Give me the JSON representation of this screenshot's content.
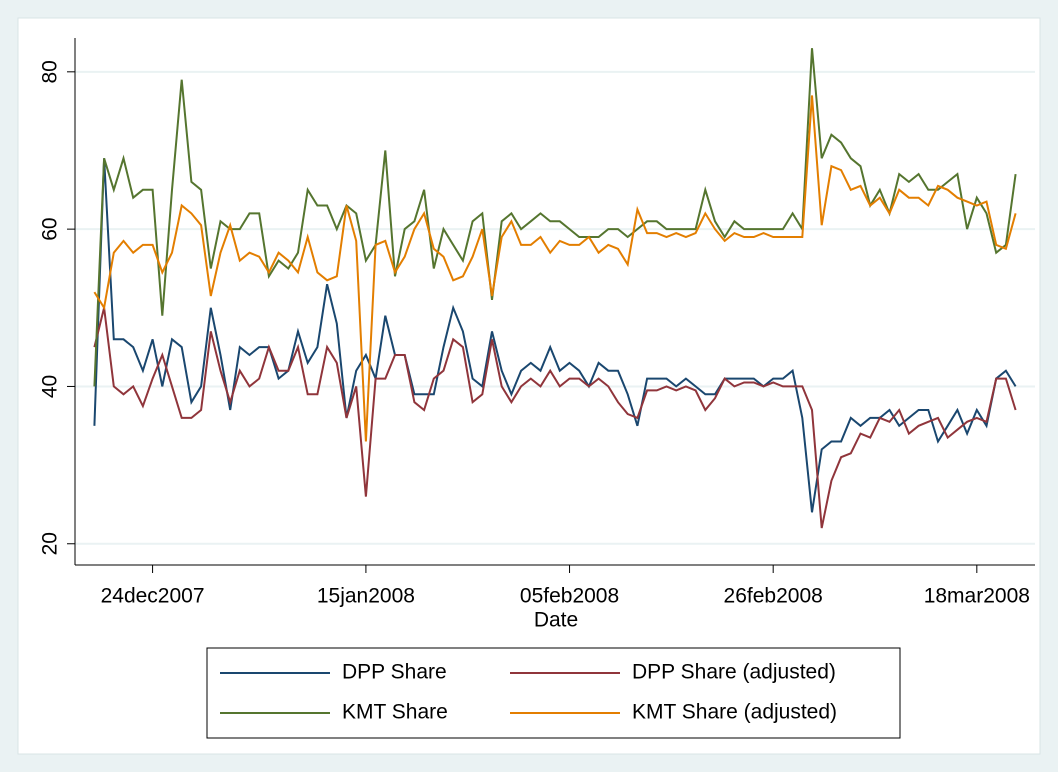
{
  "chart_data": {
    "type": "line",
    "x_label": "Date",
    "x": [
      "2007-12-18",
      "2007-12-19",
      "2007-12-20",
      "2007-12-21",
      "2007-12-22",
      "2007-12-23",
      "2007-12-24",
      "2007-12-25",
      "2007-12-26",
      "2007-12-27",
      "2007-12-28",
      "2007-12-29",
      "2007-12-30",
      "2007-12-31",
      "2008-01-01",
      "2008-01-02",
      "2008-01-03",
      "2008-01-04",
      "2008-01-05",
      "2008-01-06",
      "2008-01-07",
      "2008-01-08",
      "2008-01-09",
      "2008-01-10",
      "2008-01-11",
      "2008-01-12",
      "2008-01-13",
      "2008-01-14",
      "2008-01-15",
      "2008-01-16",
      "2008-01-17",
      "2008-01-18",
      "2008-01-19",
      "2008-01-20",
      "2008-01-21",
      "2008-01-22",
      "2008-01-23",
      "2008-01-24",
      "2008-01-25",
      "2008-01-26",
      "2008-01-27",
      "2008-01-28",
      "2008-01-29",
      "2008-01-30",
      "2008-01-31",
      "2008-02-01",
      "2008-02-02",
      "2008-02-03",
      "2008-02-04",
      "2008-02-05",
      "2008-02-06",
      "2008-02-07",
      "2008-02-08",
      "2008-02-09",
      "2008-02-10",
      "2008-02-11",
      "2008-02-12",
      "2008-02-13",
      "2008-02-14",
      "2008-02-15",
      "2008-02-16",
      "2008-02-17",
      "2008-02-18",
      "2008-02-19",
      "2008-02-20",
      "2008-02-21",
      "2008-02-22",
      "2008-02-23",
      "2008-02-24",
      "2008-02-25",
      "2008-02-26",
      "2008-02-27",
      "2008-02-28",
      "2008-02-29",
      "2008-03-01",
      "2008-03-02",
      "2008-03-03",
      "2008-03-04",
      "2008-03-05",
      "2008-03-06",
      "2008-03-07",
      "2008-03-08",
      "2008-03-09",
      "2008-03-10",
      "2008-03-11",
      "2008-03-12",
      "2008-03-13",
      "2008-03-14",
      "2008-03-15",
      "2008-03-16",
      "2008-03-17",
      "2008-03-18",
      "2008-03-19",
      "2008-03-20",
      "2008-03-21",
      "2008-03-22"
    ],
    "series": [
      {
        "name": "DPP Share",
        "color": "#1a476f",
        "values": [
          35,
          69,
          46,
          46,
          45,
          42,
          46,
          40,
          46,
          45,
          38,
          40,
          50,
          44,
          37,
          45,
          44,
          45,
          45,
          41,
          42,
          47,
          43,
          45,
          53,
          48,
          36,
          42,
          44,
          41,
          49,
          44,
          44,
          39,
          39,
          39,
          45,
          50,
          47,
          41,
          40,
          47,
          42,
          39,
          42,
          43,
          42,
          45,
          42,
          43,
          42,
          40,
          43,
          42,
          42,
          39,
          35,
          41,
          41,
          41,
          40,
          41,
          40,
          39,
          39,
          41,
          41,
          41,
          41,
          40,
          41,
          41,
          42,
          36,
          24,
          32,
          33,
          33,
          36,
          35,
          36,
          36,
          37,
          35,
          36,
          37,
          37,
          33,
          35,
          37,
          34,
          37,
          35,
          41,
          42,
          40
        ]
      },
      {
        "name": "DPP Share (adjusted)",
        "color": "#90353b",
        "values": [
          45,
          50,
          40,
          39,
          40,
          37.5,
          41,
          44,
          40,
          36,
          36,
          37,
          47,
          42,
          38,
          42,
          40,
          41,
          45,
          42,
          42,
          45,
          39,
          39,
          45,
          43,
          36,
          40,
          26,
          41,
          41,
          44,
          44,
          38,
          37,
          41,
          42,
          46,
          45,
          38,
          39,
          46,
          40,
          38,
          40,
          41,
          40,
          42,
          40,
          41,
          41,
          40,
          41,
          40,
          38,
          36.5,
          36,
          39.5,
          39.5,
          40,
          39.5,
          40,
          39.5,
          37,
          38.5,
          41,
          40,
          40.5,
          40.5,
          40,
          40.5,
          40,
          40,
          40,
          37,
          22,
          28,
          31,
          31.5,
          34,
          33.5,
          36,
          35.5,
          37,
          34,
          35,
          35.5,
          36,
          33.5,
          34.5,
          35.5,
          36,
          35.5,
          41,
          41,
          37
        ]
      },
      {
        "name": "KMT Share",
        "color": "#55752f",
        "values": [
          40,
          69,
          65,
          69,
          64,
          65,
          65,
          49,
          65,
          79,
          66,
          65,
          55,
          61,
          60,
          60,
          62,
          62,
          54,
          56,
          55,
          57,
          65,
          63,
          63,
          60,
          63,
          62,
          56,
          58,
          70,
          54,
          60,
          61,
          65,
          55,
          60,
          58,
          56,
          61,
          62,
          51,
          61,
          62,
          60,
          61,
          62,
          61,
          61,
          60,
          59,
          59,
          59,
          60,
          60,
          59,
          60,
          61,
          61,
          60,
          60,
          60,
          60,
          65,
          61,
          59,
          61,
          60,
          60,
          60,
          60,
          60,
          62,
          60,
          83,
          69,
          72,
          71,
          69,
          68,
          63,
          65,
          62,
          67,
          66,
          67,
          65,
          65,
          66,
          67,
          60,
          64,
          62,
          57,
          58,
          67
        ]
      },
      {
        "name": "KMT Share (adjusted)",
        "color": "#e37e00",
        "values": [
          52,
          50,
          57,
          58.5,
          57,
          58,
          58,
          54.5,
          57,
          63,
          62,
          60.5,
          51.5,
          57,
          60.5,
          56,
          57,
          56.5,
          54.5,
          57,
          56,
          54.5,
          59,
          54.5,
          53.5,
          54,
          63,
          58.5,
          33,
          58,
          58.5,
          54.5,
          56.5,
          60,
          62,
          57.5,
          56.5,
          53.5,
          54,
          56.5,
          60,
          51.5,
          59,
          61,
          58,
          58,
          59,
          57,
          58.5,
          58,
          58,
          59,
          57,
          58,
          57.5,
          55.5,
          62.5,
          59.5,
          59.5,
          59,
          59.5,
          59,
          59.5,
          62,
          60,
          58.5,
          59.5,
          59,
          59,
          59.5,
          59,
          59,
          59,
          59,
          77,
          60.5,
          68,
          67.5,
          65,
          65.5,
          63,
          64,
          62,
          65,
          64,
          64,
          63,
          65.5,
          65,
          64,
          63.5,
          63,
          63.5,
          58,
          57.5,
          62
        ]
      }
    ],
    "xlim": [
      "2007-12-16",
      "2008-03-24"
    ],
    "xticks": [
      {
        "value": "2007-12-24",
        "label": "24dec2007"
      },
      {
        "value": "2008-01-15",
        "label": "15jan2008"
      },
      {
        "value": "2008-02-05",
        "label": "05feb2008"
      },
      {
        "value": "2008-02-26",
        "label": "26feb2008"
      },
      {
        "value": "2008-03-18",
        "label": "18mar2008"
      }
    ],
    "ylim": [
      17.3,
      84.3
    ],
    "yticks": [
      20,
      40,
      60,
      80
    ],
    "grid": true,
    "legend": "bottom"
  }
}
